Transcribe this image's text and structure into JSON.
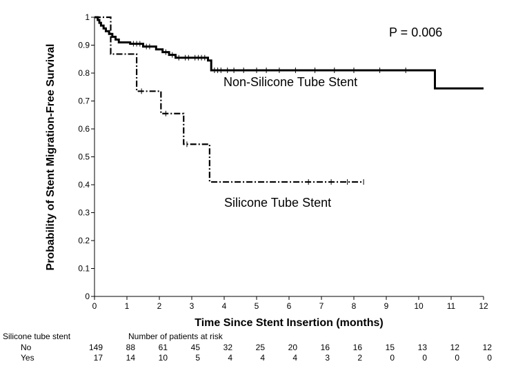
{
  "chart_data": {
    "type": "line",
    "subtype": "kaplan-meier step",
    "title": "",
    "xlabel": "Time Since Stent Insertion (months)",
    "ylabel": "Probability of Stent Migration-Free Survival",
    "xlim": [
      0,
      12
    ],
    "ylim": [
      0,
      1
    ],
    "xticks": [
      "0",
      "1",
      "2",
      "3",
      "4",
      "5",
      "6",
      "7",
      "8",
      "9",
      "10",
      "11",
      "12"
    ],
    "yticks": [
      "0",
      "0.1",
      "0.2",
      "0.3",
      "0.4",
      "0.5",
      "0.6",
      "0.7",
      "0.8",
      "0.9",
      "1"
    ],
    "grid": false,
    "annotations": {
      "p_value": "P = 0.006",
      "non_silicone_label": "Non-Silicone Tube Stent",
      "silicone_label": "Silicone Tube Stent"
    },
    "series": [
      {
        "name": "Non-Silicone Tube Stent",
        "line_style": "solid",
        "color": "#000000",
        "steps": [
          [
            0,
            1.0
          ],
          [
            0.1,
            0.99
          ],
          [
            0.15,
            0.98
          ],
          [
            0.2,
            0.97
          ],
          [
            0.28,
            0.96
          ],
          [
            0.35,
            0.95
          ],
          [
            0.45,
            0.94
          ],
          [
            0.55,
            0.93
          ],
          [
            0.65,
            0.92
          ],
          [
            0.75,
            0.91
          ],
          [
            1.1,
            0.905
          ],
          [
            1.5,
            0.895
          ],
          [
            1.9,
            0.885
          ],
          [
            2.1,
            0.875
          ],
          [
            2.3,
            0.865
          ],
          [
            2.5,
            0.855
          ],
          [
            3.5,
            0.845
          ],
          [
            3.6,
            0.835
          ],
          [
            3.6,
            0.81
          ],
          [
            10.5,
            0.81
          ],
          [
            10.5,
            0.745
          ],
          [
            12,
            0.745
          ]
        ],
        "censor_x": [
          1.2,
          1.3,
          1.4,
          1.6,
          1.7,
          2.2,
          2.4,
          2.6,
          2.8,
          2.9,
          3.1,
          3.2,
          3.3,
          3.4,
          3.7,
          3.8,
          3.9,
          4.1,
          4.3,
          4.6,
          5.0,
          5.3,
          5.7,
          6.2,
          6.8,
          7.4,
          8.0,
          8.8,
          9.6
        ]
      },
      {
        "name": "Silicone Tube Stent",
        "line_style": "dash-dot",
        "color": "#000000",
        "steps": [
          [
            0,
            1.0
          ],
          [
            0.4,
            1.0
          ],
          [
            0.5,
            0.868
          ],
          [
            1.2,
            0.868
          ],
          [
            1.3,
            0.735
          ],
          [
            1.95,
            0.735
          ],
          [
            2.05,
            0.655
          ],
          [
            2.7,
            0.655
          ],
          [
            2.75,
            0.545
          ],
          [
            3.5,
            0.545
          ],
          [
            3.55,
            0.41
          ],
          [
            8.3,
            0.41
          ]
        ],
        "censor_x": [
          1.45,
          2.2,
          2.85,
          6.6,
          7.3,
          7.8,
          8.3
        ]
      }
    ],
    "risk_table": {
      "label": "Silicone tube stent",
      "header": "Number of patients at risk",
      "rows": [
        {
          "group": "No",
          "counts": [
            "149",
            "88",
            "61",
            "45",
            "32",
            "25",
            "20",
            "16",
            "16",
            "15",
            "13",
            "12",
            "12"
          ]
        },
        {
          "group": "Yes",
          "counts": [
            "17",
            "14",
            "10",
            "5",
            "4",
            "4",
            "4",
            "3",
            "2",
            "0",
            "0",
            "0",
            "0"
          ]
        }
      ]
    }
  }
}
